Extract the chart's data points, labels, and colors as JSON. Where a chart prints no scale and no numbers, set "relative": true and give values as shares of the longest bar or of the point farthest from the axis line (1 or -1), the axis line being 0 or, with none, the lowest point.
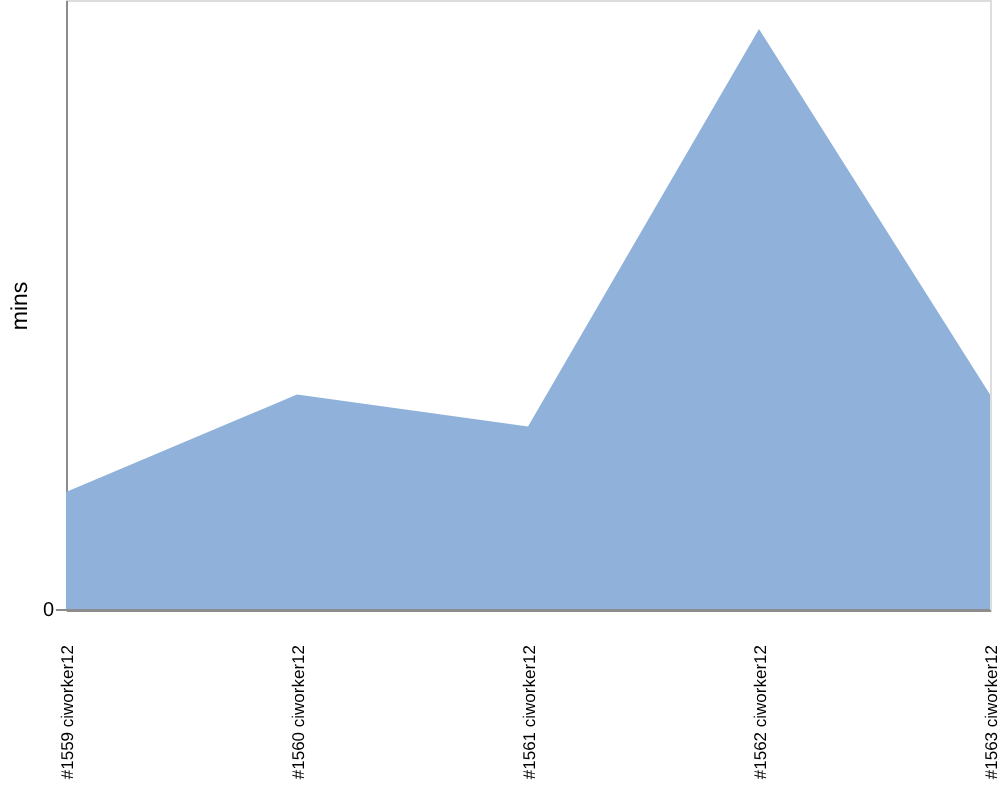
{
  "chart_data": {
    "type": "area",
    "ylabel": "mins",
    "categories": [
      "#1559 ciworker12",
      "#1560 ciworker12",
      "#1561 ciworker12",
      "#1562 ciworker12",
      "#1563 ciworker12"
    ],
    "series": [
      {
        "color": "#8fb1da",
        "values": [
          0.203,
          0.371,
          0.316,
          1,
          0.371
        ]
      }
    ],
    "relative": true,
    "ref_lines": [
      {
        "axis": "y",
        "value": 0,
        "label": "0",
        "color": "#8c8c8c"
      }
    ]
  }
}
